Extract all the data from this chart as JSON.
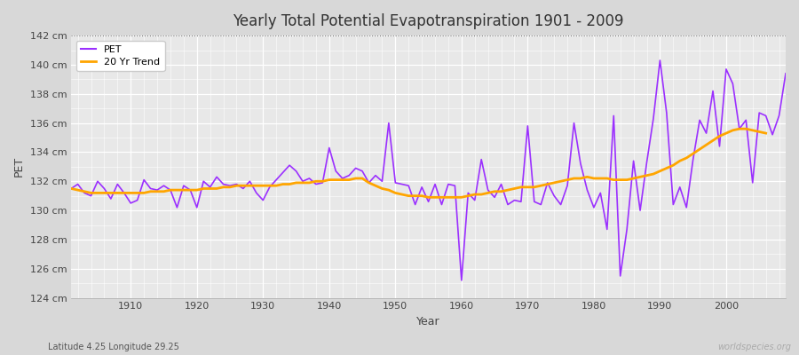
{
  "title": "Yearly Total Potential Evapotranspiration 1901 - 2009",
  "xlabel": "Year",
  "ylabel": "PET",
  "subtitle": "Latitude 4.25 Longitude 29.25",
  "watermark": "worldspecies.org",
  "ylim": [
    124,
    142
  ],
  "xlim": [
    1901,
    2009
  ],
  "yticks": [
    124,
    126,
    128,
    130,
    132,
    134,
    136,
    138,
    140,
    142
  ],
  "xticks": [
    1910,
    1920,
    1930,
    1940,
    1950,
    1960,
    1970,
    1980,
    1990,
    2000
  ],
  "pet_color": "#9B30FF",
  "trend_color": "#FFA500",
  "fig_bg_color": "#D8D8D8",
  "plot_bg_color": "#E8E8E8",
  "years": [
    1901,
    1902,
    1903,
    1904,
    1905,
    1906,
    1907,
    1908,
    1909,
    1910,
    1911,
    1912,
    1913,
    1914,
    1915,
    1916,
    1917,
    1918,
    1919,
    1920,
    1921,
    1922,
    1923,
    1924,
    1925,
    1926,
    1927,
    1928,
    1929,
    1930,
    1931,
    1932,
    1933,
    1934,
    1935,
    1936,
    1937,
    1938,
    1939,
    1940,
    1941,
    1942,
    1943,
    1944,
    1945,
    1946,
    1947,
    1948,
    1949,
    1950,
    1951,
    1952,
    1953,
    1954,
    1955,
    1956,
    1957,
    1958,
    1959,
    1960,
    1961,
    1962,
    1963,
    1964,
    1965,
    1966,
    1967,
    1968,
    1969,
    1970,
    1971,
    1972,
    1973,
    1974,
    1975,
    1976,
    1977,
    1978,
    1979,
    1980,
    1981,
    1982,
    1983,
    1984,
    1985,
    1986,
    1987,
    1988,
    1989,
    1990,
    1991,
    1992,
    1993,
    1994,
    1995,
    1996,
    1997,
    1998,
    1999,
    2000,
    2001,
    2002,
    2003,
    2004,
    2005,
    2006,
    2007,
    2008,
    2009
  ],
  "pet_values": [
    131.5,
    131.8,
    131.2,
    131.0,
    132.0,
    131.5,
    130.8,
    131.8,
    131.2,
    130.5,
    130.7,
    132.1,
    131.5,
    131.4,
    131.7,
    131.4,
    130.2,
    131.7,
    131.4,
    130.2,
    132.0,
    131.6,
    132.3,
    131.8,
    131.7,
    131.8,
    131.5,
    132.0,
    131.2,
    130.7,
    131.6,
    132.1,
    132.6,
    133.1,
    132.7,
    132.0,
    132.2,
    131.8,
    131.9,
    134.3,
    132.7,
    132.2,
    132.4,
    132.9,
    132.7,
    131.9,
    132.4,
    132.0,
    136.0,
    131.9,
    131.8,
    131.7,
    130.4,
    131.6,
    130.6,
    131.8,
    130.4,
    131.8,
    131.7,
    125.2,
    131.2,
    130.7,
    133.5,
    131.4,
    130.9,
    131.8,
    130.4,
    130.7,
    130.6,
    135.8,
    130.6,
    130.4,
    131.9,
    131.0,
    130.4,
    131.7,
    136.0,
    133.2,
    131.4,
    130.2,
    131.2,
    128.7,
    136.5,
    125.5,
    128.7,
    133.4,
    130.0,
    133.3,
    136.3,
    140.3,
    136.7,
    130.4,
    131.6,
    130.2,
    133.5,
    136.2,
    135.3,
    138.2,
    134.4,
    139.7,
    138.7,
    135.6,
    136.2,
    131.9,
    136.7,
    136.5,
    135.2,
    136.5,
    139.4
  ],
  "trend_values": [
    131.5,
    131.4,
    131.3,
    131.2,
    131.2,
    131.2,
    131.2,
    131.2,
    131.2,
    131.2,
    131.2,
    131.2,
    131.3,
    131.3,
    131.3,
    131.4,
    131.4,
    131.4,
    131.4,
    131.4,
    131.5,
    131.5,
    131.5,
    131.6,
    131.6,
    131.7,
    131.7,
    131.7,
    131.7,
    131.7,
    131.7,
    131.7,
    131.8,
    131.8,
    131.9,
    131.9,
    131.9,
    132.0,
    132.0,
    132.1,
    132.1,
    132.1,
    132.1,
    132.2,
    132.2,
    131.9,
    131.7,
    131.5,
    131.4,
    131.2,
    131.1,
    131.0,
    131.0,
    131.0,
    130.9,
    130.9,
    130.9,
    130.9,
    130.9,
    130.9,
    131.0,
    131.1,
    131.1,
    131.2,
    131.3,
    131.3,
    131.4,
    131.5,
    131.6,
    131.6,
    131.6,
    131.7,
    131.8,
    131.9,
    132.0,
    132.1,
    132.2,
    132.2,
    132.3,
    132.2,
    132.2,
    132.2,
    132.1,
    132.1,
    132.1,
    132.2,
    132.3,
    132.4,
    132.5,
    132.7,
    132.9,
    133.1,
    133.4,
    133.6,
    133.9,
    134.2,
    134.5,
    134.8,
    135.1,
    135.3,
    135.5,
    135.6,
    135.6,
    135.5,
    135.4,
    135.3,
    null,
    null,
    null
  ]
}
